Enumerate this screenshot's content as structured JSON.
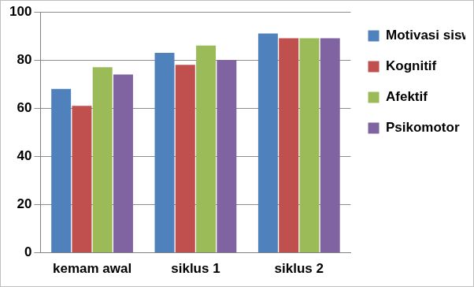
{
  "chart_data": {
    "type": "bar",
    "categories": [
      "kemam awal",
      "siklus 1",
      "siklus 2"
    ],
    "series": [
      {
        "name": "Motivasi siswa",
        "color": "#4f81bd",
        "values": [
          68,
          83,
          91
        ]
      },
      {
        "name": "Kognitif",
        "color": "#c0504d",
        "values": [
          61,
          78,
          89
        ]
      },
      {
        "name": "Afektif",
        "color": "#9bbb59",
        "values": [
          77,
          86,
          89
        ]
      },
      {
        "name": "Psikomotor",
        "color": "#8064a2",
        "values": [
          74,
          80,
          89
        ]
      }
    ],
    "ylim": [
      0,
      100
    ],
    "yticks": [
      0,
      20,
      40,
      60,
      80,
      100
    ],
    "grid": true,
    "legend": "right"
  }
}
